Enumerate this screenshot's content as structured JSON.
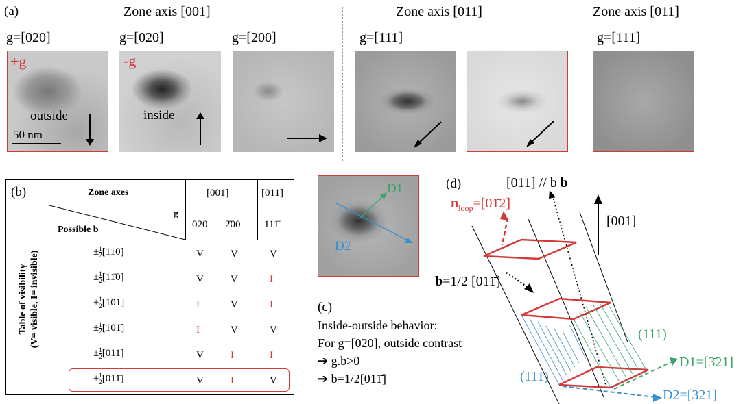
{
  "panel_a": {
    "label": "(a)",
    "zone_axis_001": "Zone axis [001]",
    "zone_axis_011_left": "Zone axis [011]",
    "zone_axis_011_right": "Zone axis [011]",
    "images": [
      {
        "g": "g=[020]",
        "sign": "+g",
        "contrast": "outside",
        "scalebar": "50 nm"
      },
      {
        "g": "g=[0̅2̅0]",
        "g_display": "g=[02̄0]",
        "sign": "-g",
        "contrast": "inside"
      },
      {
        "g_display": "g=[2̄00]"
      },
      {
        "g_display": "g=[111̄]"
      },
      {
        "g_display": ""
      },
      {
        "g_display": "g=[111̄]"
      }
    ]
  },
  "panel_b": {
    "label": "(b)",
    "side_title_line1": "Table of visibility",
    "side_title_line2": "(V= visible, I= invisible)",
    "header_zone_axes": "Zone axes",
    "header_001": "[001]",
    "header_011": "[011]",
    "header_g": "g",
    "header_possible_b": "Possible b",
    "g_cols": [
      "020",
      "2̄00",
      "11 1̄"
    ],
    "g_cols_display": [
      "020",
      "2̄00",
      "111̄"
    ],
    "rows": [
      {
        "b": "[110]",
        "v": [
          "V",
          "V",
          "V"
        ]
      },
      {
        "b": "[11̄0]",
        "v": [
          "V",
          "V",
          "I"
        ]
      },
      {
        "b": "[101]",
        "v": [
          "I",
          "V",
          "I"
        ]
      },
      {
        "b": "[101̄]",
        "v": [
          "I",
          "V",
          "V"
        ]
      },
      {
        "b": "[011]",
        "v": [
          "V",
          "I",
          "I"
        ]
      },
      {
        "b": "[011̄]",
        "v": [
          "V",
          "I",
          "V"
        ]
      }
    ],
    "pm": "±",
    "half_num": "1",
    "half_den": "2"
  },
  "panel_c": {
    "label": "(c)",
    "d1": "D1",
    "d2": "D2",
    "line1": "Inside-outside behavior:",
    "line2": "For g=[020], outside contrast",
    "line3": "➔ g.b>0",
    "line4": "➔  b=1/2[011̄]"
  },
  "panel_d": {
    "label": "(d)",
    "b_dir": "[011̄] // b",
    "axis_001": "[001]",
    "n_loop_n": "n",
    "n_loop_sub": "loop",
    "n_loop_val": "=[01̄2]",
    "b_half": "=1/2 [011̄]",
    "b_bold": "b",
    "plane_111": "(111)",
    "plane_m111": "(1̄11)",
    "D1": "D1=[3̄21]",
    "D2": "D2=[321]"
  },
  "colors": {
    "red": "#d23a3a",
    "green": "#3aa56a",
    "blue": "#3a8fd0"
  }
}
